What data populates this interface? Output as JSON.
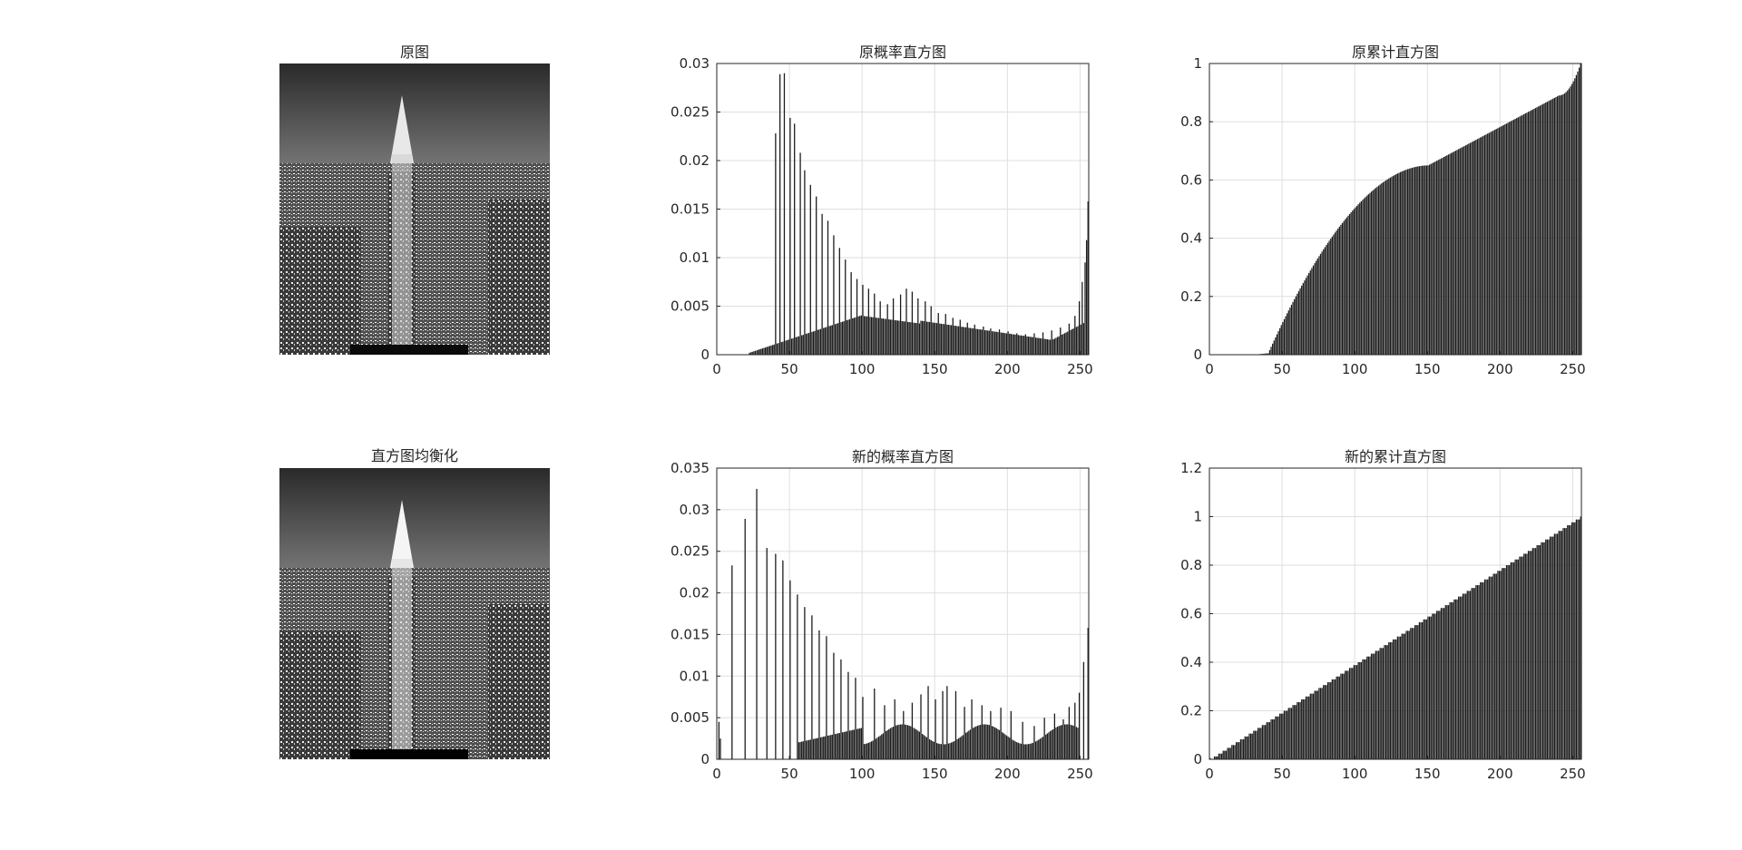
{
  "figure": {
    "image_panels": [
      {
        "title": "原图",
        "data-name": "original-image-panel"
      },
      {
        "title": "直方图均衡化",
        "data-name": "equalized-image-panel"
      }
    ],
    "photo_description_hint": "grayscale night cityscape with skyscraper"
  },
  "chart_data": [
    {
      "type": "bar",
      "title": "原概率直方图",
      "xlabel": "",
      "ylabel": "",
      "xlim": [
        0,
        256
      ],
      "ylim": [
        0,
        0.03
      ],
      "xticks": [
        "0",
        "50",
        "100",
        "150",
        "200",
        "250"
      ],
      "yticks": [
        "0",
        "0.005",
        "0.01",
        "0.015",
        "0.02",
        "0.025",
        "0.03"
      ],
      "grid": true,
      "series": [
        {
          "values": []
        }
      ]
    },
    {
      "type": "bar",
      "title": "原累计直方图",
      "xlabel": "",
      "ylabel": "",
      "xlim": [
        0,
        256
      ],
      "ylim": [
        0,
        1
      ],
      "xticks": [
        "0",
        "50",
        "100",
        "150",
        "200",
        "250"
      ],
      "yticks": [
        "0",
        "0.2",
        "0.4",
        "0.6",
        "0.8",
        "1"
      ],
      "grid": true,
      "series": [
        {
          "values": []
        }
      ]
    },
    {
      "type": "bar",
      "title": "新的概率直方图",
      "xlabel": "",
      "ylabel": "",
      "xlim": [
        0,
        256
      ],
      "ylim": [
        0,
        0.035
      ],
      "xticks": [
        "0",
        "50",
        "100",
        "150",
        "200",
        "250"
      ],
      "yticks": [
        "0",
        "0.005",
        "0.01",
        "0.015",
        "0.02",
        "0.025",
        "0.03",
        "0.035"
      ],
      "grid": true,
      "series": [
        {
          "values": []
        }
      ]
    },
    {
      "type": "bar",
      "title": "新的累计直方图",
      "xlabel": "",
      "ylabel": "",
      "xlim": [
        0,
        256
      ],
      "ylim": [
        0,
        1.2
      ],
      "xticks": [
        "0",
        "50",
        "100",
        "150",
        "200",
        "250"
      ],
      "yticks": [
        "0",
        "0.2",
        "0.4",
        "0.6",
        "0.8",
        "1",
        "1.2"
      ],
      "grid": true,
      "series": [
        {
          "values": []
        }
      ]
    }
  ]
}
